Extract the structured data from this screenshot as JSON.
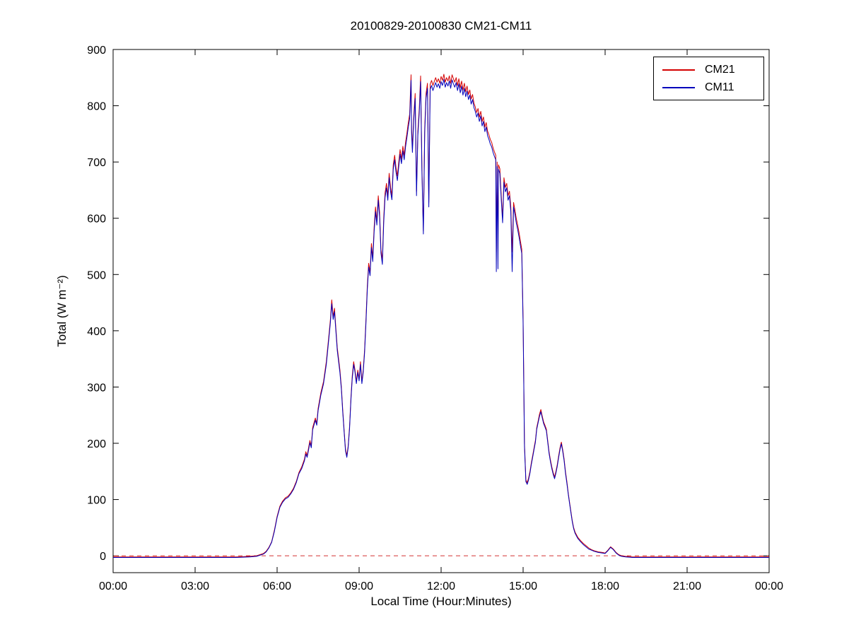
{
  "chart_data": {
    "type": "line",
    "title": "20100829-20100830 CM21-CM11",
    "xlabel": "Local Time (Hour:Minutes)",
    "ylabel": "Total (W m⁻²)",
    "xlim": [
      0,
      24
    ],
    "ylim": [
      -30,
      900
    ],
    "grid": false,
    "legend_position": "top-right",
    "xtick_values": [
      0,
      3,
      6,
      9,
      12,
      15,
      18,
      21,
      24
    ],
    "xtick_labels": [
      "00:00",
      "03:00",
      "06:00",
      "09:00",
      "12:00",
      "15:00",
      "18:00",
      "21:00",
      "00:00"
    ],
    "ytick_values": [
      0,
      100,
      200,
      300,
      400,
      500,
      600,
      700,
      800,
      900
    ],
    "series_meta": [
      {
        "name": "CM21",
        "color": "#d40000"
      },
      {
        "name": "CM11",
        "color": "#0000bb"
      }
    ],
    "zero_line": {
      "y": 0,
      "color": "#d43030",
      "style": "dashed"
    },
    "points_columns": [
      "time_hours",
      "CM21",
      "CM11"
    ],
    "points": [
      [
        0,
        -2,
        -3
      ],
      [
        0.5,
        -2,
        -3
      ],
      [
        1,
        -2,
        -3
      ],
      [
        1.5,
        -2,
        -3
      ],
      [
        2,
        -2,
        -3
      ],
      [
        2.5,
        -2,
        -3
      ],
      [
        3,
        -2,
        -3
      ],
      [
        3.5,
        -2,
        -3
      ],
      [
        4,
        -2,
        -3
      ],
      [
        4.5,
        -2,
        -3
      ],
      [
        5,
        -1,
        -2
      ],
      [
        5.25,
        0,
        -1
      ],
      [
        5.5,
        4,
        3
      ],
      [
        5.6,
        8,
        7
      ],
      [
        5.7,
        15,
        14
      ],
      [
        5.8,
        25,
        24
      ],
      [
        5.9,
        45,
        43
      ],
      [
        6,
        70,
        68
      ],
      [
        6.1,
        88,
        86
      ],
      [
        6.2,
        97,
        95
      ],
      [
        6.3,
        103,
        101
      ],
      [
        6.4,
        106,
        104
      ],
      [
        6.5,
        112,
        110
      ],
      [
        6.6,
        120,
        118
      ],
      [
        6.7,
        132,
        130
      ],
      [
        6.8,
        148,
        146
      ],
      [
        6.9,
        158,
        155
      ],
      [
        7,
        172,
        169
      ],
      [
        7.05,
        185,
        181
      ],
      [
        7.1,
        178,
        175
      ],
      [
        7.2,
        205,
        201
      ],
      [
        7.25,
        195,
        192
      ],
      [
        7.3,
        228,
        224
      ],
      [
        7.4,
        245,
        241
      ],
      [
        7.45,
        235,
        232
      ],
      [
        7.5,
        262,
        258
      ],
      [
        7.6,
        290,
        286
      ],
      [
        7.7,
        310,
        306
      ],
      [
        7.8,
        345,
        340
      ],
      [
        7.9,
        395,
        390
      ],
      [
        7.95,
        420,
        415
      ],
      [
        8,
        455,
        448
      ],
      [
        8.05,
        425,
        420
      ],
      [
        8.1,
        440,
        434
      ],
      [
        8.15,
        405,
        400
      ],
      [
        8.2,
        370,
        365
      ],
      [
        8.3,
        330,
        325
      ],
      [
        8.35,
        300,
        296
      ],
      [
        8.4,
        260,
        256
      ],
      [
        8.45,
        225,
        222
      ],
      [
        8.5,
        190,
        187
      ],
      [
        8.55,
        178,
        175
      ],
      [
        8.6,
        195,
        192
      ],
      [
        8.65,
        230,
        226
      ],
      [
        8.7,
        280,
        276
      ],
      [
        8.75,
        320,
        315
      ],
      [
        8.8,
        345,
        340
      ],
      [
        8.85,
        330,
        326
      ],
      [
        8.9,
        310,
        306
      ],
      [
        8.95,
        330,
        326
      ],
      [
        9,
        315,
        311
      ],
      [
        9.05,
        345,
        340
      ],
      [
        9.1,
        310,
        306
      ],
      [
        9.15,
        330,
        326
      ],
      [
        9.2,
        365,
        360
      ],
      [
        9.25,
        420,
        414
      ],
      [
        9.3,
        480,
        473
      ],
      [
        9.35,
        520,
        513
      ],
      [
        9.4,
        505,
        498
      ],
      [
        9.45,
        555,
        548
      ],
      [
        9.5,
        530,
        523
      ],
      [
        9.55,
        585,
        577
      ],
      [
        9.6,
        620,
        612
      ],
      [
        9.65,
        595,
        588
      ],
      [
        9.7,
        640,
        632
      ],
      [
        9.75,
        610,
        602
      ],
      [
        9.8,
        545,
        538
      ],
      [
        9.85,
        525,
        518
      ],
      [
        9.9,
        600,
        592
      ],
      [
        9.95,
        645,
        637
      ],
      [
        10,
        662,
        654
      ],
      [
        10.05,
        640,
        632
      ],
      [
        10.1,
        680,
        672
      ],
      [
        10.15,
        655,
        647
      ],
      [
        10.2,
        640,
        633
      ],
      [
        10.25,
        695,
        687
      ],
      [
        10.3,
        712,
        704
      ],
      [
        10.35,
        690,
        682
      ],
      [
        10.4,
        675,
        667
      ],
      [
        10.45,
        700,
        692
      ],
      [
        10.5,
        722,
        714
      ],
      [
        10.55,
        705,
        697
      ],
      [
        10.6,
        728,
        720
      ],
      [
        10.65,
        712,
        704
      ],
      [
        10.7,
        735,
        727
      ],
      [
        10.75,
        752,
        744
      ],
      [
        10.8,
        770,
        762
      ],
      [
        10.85,
        785,
        777
      ],
      [
        10.9,
        855,
        845
      ],
      [
        10.92,
        760,
        752
      ],
      [
        10.95,
        725,
        717
      ],
      [
        11,
        782,
        774
      ],
      [
        11.05,
        822,
        813
      ],
      [
        11.1,
        648,
        640
      ],
      [
        11.15,
        755,
        747
      ],
      [
        11.2,
        795,
        787
      ],
      [
        11.25,
        853,
        843
      ],
      [
        11.3,
        688,
        680
      ],
      [
        11.35,
        578,
        572
      ],
      [
        11.4,
        760,
        752
      ],
      [
        11.45,
        822,
        814
      ],
      [
        11.5,
        840,
        831
      ],
      [
        11.55,
        628,
        620
      ],
      [
        11.6,
        838,
        829
      ],
      [
        11.65,
        845,
        836
      ],
      [
        11.7,
        836,
        827
      ],
      [
        11.75,
        843,
        834
      ],
      [
        11.8,
        850,
        841
      ],
      [
        11.85,
        842,
        833
      ],
      [
        11.9,
        848,
        839
      ],
      [
        11.95,
        840,
        831
      ],
      [
        12,
        852,
        843
      ],
      [
        12.05,
        845,
        836
      ],
      [
        12.1,
        856,
        847
      ],
      [
        12.15,
        842,
        833
      ],
      [
        12.2,
        850,
        841
      ],
      [
        12.25,
        844,
        835
      ],
      [
        12.3,
        853,
        844
      ],
      [
        12.35,
        840,
        831
      ],
      [
        12.4,
        855,
        846
      ],
      [
        12.45,
        848,
        839
      ],
      [
        12.5,
        842,
        833
      ],
      [
        12.55,
        850,
        841
      ],
      [
        12.6,
        836,
        827
      ],
      [
        12.65,
        848,
        839
      ],
      [
        12.7,
        832,
        823
      ],
      [
        12.75,
        844,
        835
      ],
      [
        12.8,
        828,
        819
      ],
      [
        12.85,
        840,
        831
      ],
      [
        12.9,
        825,
        816
      ],
      [
        12.95,
        835,
        826
      ],
      [
        13,
        820,
        811
      ],
      [
        13.05,
        828,
        819
      ],
      [
        13.1,
        812,
        803
      ],
      [
        13.15,
        820,
        811
      ],
      [
        13.2,
        805,
        797
      ],
      [
        13.25,
        798,
        790
      ],
      [
        13.3,
        788,
        780
      ],
      [
        13.35,
        795,
        787
      ],
      [
        13.4,
        780,
        772
      ],
      [
        13.45,
        790,
        782
      ],
      [
        13.5,
        772,
        764
      ],
      [
        13.55,
        780,
        772
      ],
      [
        13.6,
        762,
        754
      ],
      [
        13.65,
        770,
        762
      ],
      [
        13.7,
        755,
        747
      ],
      [
        13.75,
        748,
        740
      ],
      [
        13.8,
        740,
        732
      ],
      [
        13.85,
        735,
        727
      ],
      [
        13.9,
        725,
        717
      ],
      [
        13.95,
        718,
        710
      ],
      [
        14,
        712,
        704
      ],
      [
        14.02,
        540,
        505
      ],
      [
        14.05,
        700,
        692
      ],
      [
        14.08,
        545,
        510
      ],
      [
        14.1,
        695,
        687
      ],
      [
        14.15,
        688,
        680
      ],
      [
        14.2,
        640,
        632
      ],
      [
        14.25,
        600,
        592
      ],
      [
        14.3,
        672,
        664
      ],
      [
        14.35,
        655,
        647
      ],
      [
        14.4,
        662,
        654
      ],
      [
        14.45,
        640,
        632
      ],
      [
        14.5,
        648,
        640
      ],
      [
        14.55,
        620,
        612
      ],
      [
        14.6,
        540,
        505
      ],
      [
        14.65,
        628,
        620
      ],
      [
        14.7,
        615,
        607
      ],
      [
        14.75,
        600,
        592
      ],
      [
        14.8,
        588,
        580
      ],
      [
        14.85,
        575,
        567
      ],
      [
        14.9,
        560,
        552
      ],
      [
        14.95,
        545,
        537
      ],
      [
        15,
        420,
        412
      ],
      [
        15.05,
        200,
        195
      ],
      [
        15.1,
        135,
        132
      ],
      [
        15.15,
        130,
        127
      ],
      [
        15.2,
        138,
        135
      ],
      [
        15.25,
        150,
        147
      ],
      [
        15.3,
        165,
        162
      ],
      [
        15.35,
        178,
        175
      ],
      [
        15.4,
        192,
        189
      ],
      [
        15.45,
        205,
        202
      ],
      [
        15.5,
        228,
        225
      ],
      [
        15.55,
        240,
        237
      ],
      [
        15.6,
        252,
        248
      ],
      [
        15.65,
        260,
        256
      ],
      [
        15.7,
        248,
        245
      ],
      [
        15.75,
        238,
        235
      ],
      [
        15.8,
        232,
        229
      ],
      [
        15.85,
        225,
        222
      ],
      [
        15.9,
        205,
        202
      ],
      [
        15.95,
        185,
        182
      ],
      [
        16,
        170,
        167
      ],
      [
        16.05,
        158,
        155
      ],
      [
        16.1,
        148,
        145
      ],
      [
        16.15,
        140,
        137
      ],
      [
        16.2,
        150,
        147
      ],
      [
        16.25,
        162,
        159
      ],
      [
        16.3,
        178,
        175
      ],
      [
        16.35,
        192,
        189
      ],
      [
        16.4,
        202,
        199
      ],
      [
        16.45,
        188,
        185
      ],
      [
        16.5,
        172,
        169
      ],
      [
        16.55,
        150,
        147
      ],
      [
        16.6,
        132,
        129
      ],
      [
        16.65,
        112,
        110
      ],
      [
        16.7,
        95,
        93
      ],
      [
        16.75,
        78,
        76
      ],
      [
        16.8,
        62,
        60
      ],
      [
        16.85,
        50,
        48
      ],
      [
        16.9,
        42,
        40
      ],
      [
        17,
        33,
        31
      ],
      [
        17.1,
        27,
        25
      ],
      [
        17.2,
        22,
        20
      ],
      [
        17.3,
        18,
        16
      ],
      [
        17.4,
        14,
        12
      ],
      [
        17.5,
        11,
        10
      ],
      [
        17.6,
        9,
        8
      ],
      [
        17.75,
        7,
        6
      ],
      [
        17.9,
        6,
        5
      ],
      [
        18,
        5,
        4
      ],
      [
        18.1,
        10,
        9
      ],
      [
        18.2,
        16,
        15
      ],
      [
        18.3,
        12,
        11
      ],
      [
        18.4,
        6,
        5
      ],
      [
        18.5,
        2,
        1
      ],
      [
        18.6,
        0,
        -1
      ],
      [
        18.75,
        -1,
        -2
      ],
      [
        19,
        -2,
        -3
      ],
      [
        19.5,
        -2,
        -3
      ],
      [
        20,
        -2,
        -3
      ],
      [
        20.5,
        -2,
        -3
      ],
      [
        21,
        -2,
        -3
      ],
      [
        21.5,
        -2,
        -3
      ],
      [
        22,
        -2,
        -3
      ],
      [
        22.5,
        -2,
        -3
      ],
      [
        23,
        -2,
        -3
      ],
      [
        23.5,
        -2,
        -3
      ],
      [
        24,
        -2,
        -3
      ]
    ]
  }
}
